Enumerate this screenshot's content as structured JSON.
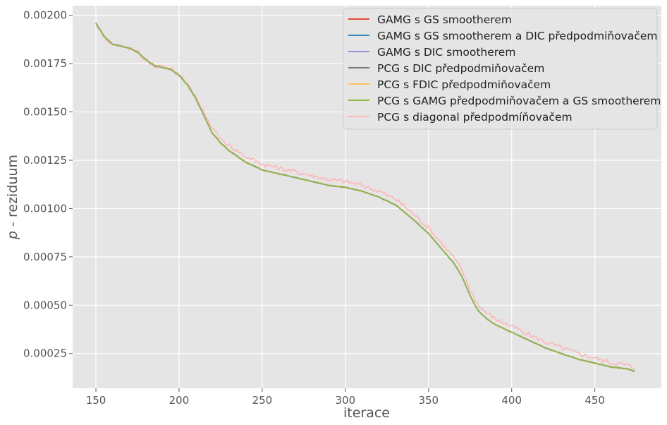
{
  "chart_data": {
    "type": "line",
    "style": "ggplot",
    "xlabel": "iterace",
    "ylabel": "p - reziduum",
    "ylabel_italic_part": "p",
    "ylabel_rest": " - reziduum",
    "xlim": [
      136,
      490
    ],
    "ylim": [
      7e-05,
      0.00205
    ],
    "xticks": [
      150,
      200,
      250,
      300,
      350,
      400,
      450
    ],
    "yticks": [
      0.00025,
      0.0005,
      0.00075,
      0.001,
      0.00125,
      0.0015,
      0.00175,
      0.002
    ],
    "ytick_labels": [
      "0.00025",
      "0.00050",
      "0.00075",
      "0.00100",
      "0.00125",
      "0.00150",
      "0.00175",
      "0.00200"
    ],
    "grid": true,
    "legend_position": "top-right",
    "base_curve": {
      "x": [
        150,
        155,
        160,
        165,
        170,
        175,
        180,
        185,
        190,
        195,
        200,
        205,
        210,
        215,
        220,
        225,
        230,
        235,
        240,
        245,
        250,
        255,
        260,
        270,
        280,
        290,
        300,
        310,
        320,
        330,
        340,
        345,
        350,
        355,
        360,
        365,
        370,
        372,
        375,
        378,
        380,
        385,
        390,
        400,
        410,
        420,
        430,
        440,
        450,
        460,
        470,
        474
      ],
      "y": [
        0.00196,
        0.00189,
        0.00185,
        0.00184,
        0.00183,
        0.00181,
        0.00177,
        0.00174,
        0.00173,
        0.00172,
        0.00169,
        0.00164,
        0.00157,
        0.00148,
        0.00139,
        0.00134,
        0.0013,
        0.00127,
        0.00124,
        0.00122,
        0.0012,
        0.00119,
        0.00118,
        0.00116,
        0.00114,
        0.00112,
        0.00111,
        0.00109,
        0.00106,
        0.00102,
        0.00095,
        0.00091,
        0.00087,
        0.00082,
        0.00077,
        0.00072,
        0.00065,
        0.00061,
        0.00055,
        0.0005,
        0.00047,
        0.00043,
        0.0004,
        0.00036,
        0.00032,
        0.00028,
        0.00025,
        0.00022,
        0.0002,
        0.00018,
        0.00017,
        0.000158
      ]
    },
    "series": [
      {
        "name": "GAMG s GS smootherem",
        "color": "#E24A33",
        "offset": 0.0,
        "noise": 0.0
      },
      {
        "name": "GAMG s GS smootherem a DIC předpodmiňovačem",
        "color": "#348ABD",
        "offset": 0.0,
        "noise": 0.0
      },
      {
        "name": "GAMG s DIC smootherem",
        "color": "#988ED5",
        "offset": 0.0,
        "noise": 0.0
      },
      {
        "name": "PCG s DIC předpodmiňovačem",
        "color": "#777777",
        "offset": 0.0,
        "noise": 2e-06
      },
      {
        "name": "PCG s FDIC předpodmiňovačem",
        "color": "#FBC15E",
        "offset": 0.0,
        "noise": 4e-06
      },
      {
        "name": "PCG s GAMG předpodmiňovačem a GS smootherem",
        "color": "#8EBA42",
        "offset": 0.0,
        "noise": 0.0
      },
      {
        "name": "PCG s diagonal předpodmíňovačem",
        "color": "#FFB5B8",
        "offset": 3e-05,
        "noise": 1.2e-05
      }
    ]
  }
}
